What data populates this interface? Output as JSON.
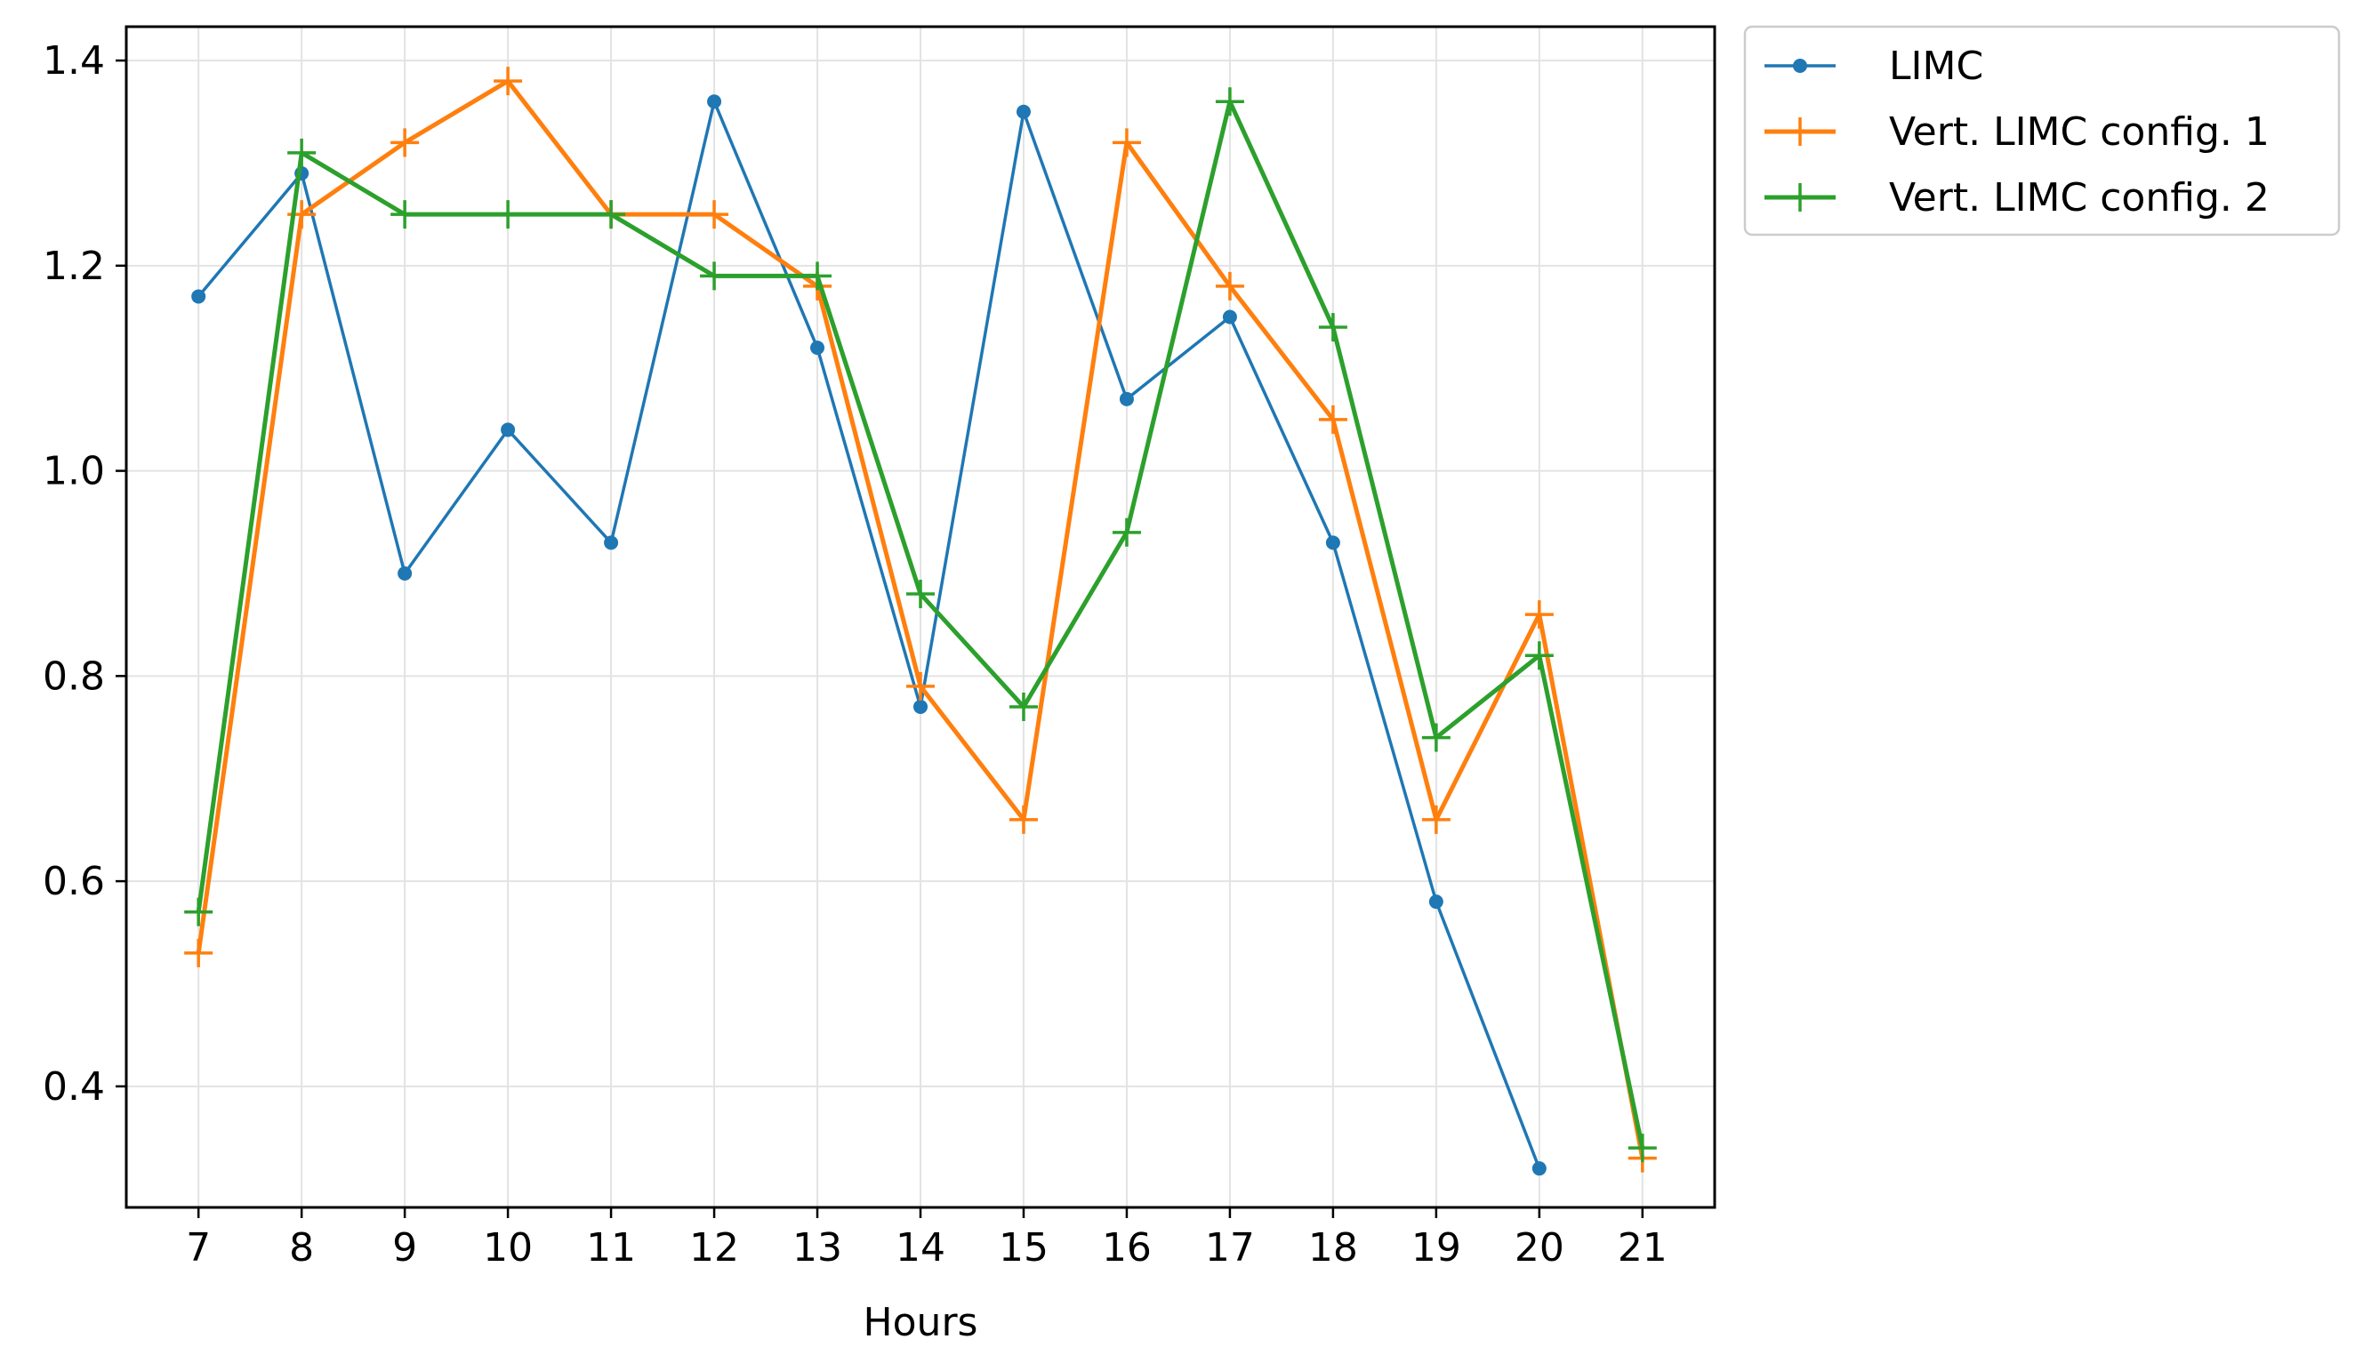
{
  "chart_data": {
    "type": "line",
    "title": "",
    "xlabel": "Hours",
    "ylabel": "",
    "x": [
      7,
      8,
      9,
      10,
      11,
      12,
      13,
      14,
      15,
      16,
      17,
      18,
      19,
      20,
      21
    ],
    "x_tick_labels": [
      "7",
      "8",
      "9",
      "10",
      "11",
      "12",
      "13",
      "14",
      "15",
      "16",
      "17",
      "18",
      "19",
      "20",
      "21"
    ],
    "xlim": [
      6.3,
      21.7
    ],
    "ylim": [
      0.282,
      1.433
    ],
    "y_ticks": [
      0.4,
      0.6,
      0.8,
      1.0,
      1.2,
      1.4
    ],
    "y_tick_labels": [
      "0.4",
      "0.6",
      "0.8",
      "1.0",
      "1.2",
      "1.4"
    ],
    "grid": true,
    "legend_position": "outside-top-right",
    "series": [
      {
        "name": "LIMC",
        "color": "#1f77b4",
        "marker": "dot",
        "values": [
          1.17,
          1.29,
          0.9,
          1.04,
          0.93,
          1.36,
          1.12,
          0.77,
          1.35,
          1.07,
          1.15,
          0.93,
          0.58,
          0.32,
          null
        ]
      },
      {
        "name": "Vert. LIMC config. 1",
        "color": "#ff7f0e",
        "marker": "plus",
        "values": [
          0.53,
          1.25,
          1.32,
          1.38,
          1.25,
          1.25,
          1.18,
          0.79,
          0.66,
          1.32,
          1.18,
          1.05,
          0.66,
          0.86,
          0.33
        ]
      },
      {
        "name": "Vert. LIMC config. 2",
        "color": "#2ca02c",
        "marker": "plus",
        "values": [
          0.57,
          1.31,
          1.25,
          1.25,
          1.25,
          1.19,
          1.19,
          0.88,
          0.77,
          0.94,
          1.36,
          1.14,
          0.74,
          0.82,
          0.34
        ]
      }
    ]
  }
}
